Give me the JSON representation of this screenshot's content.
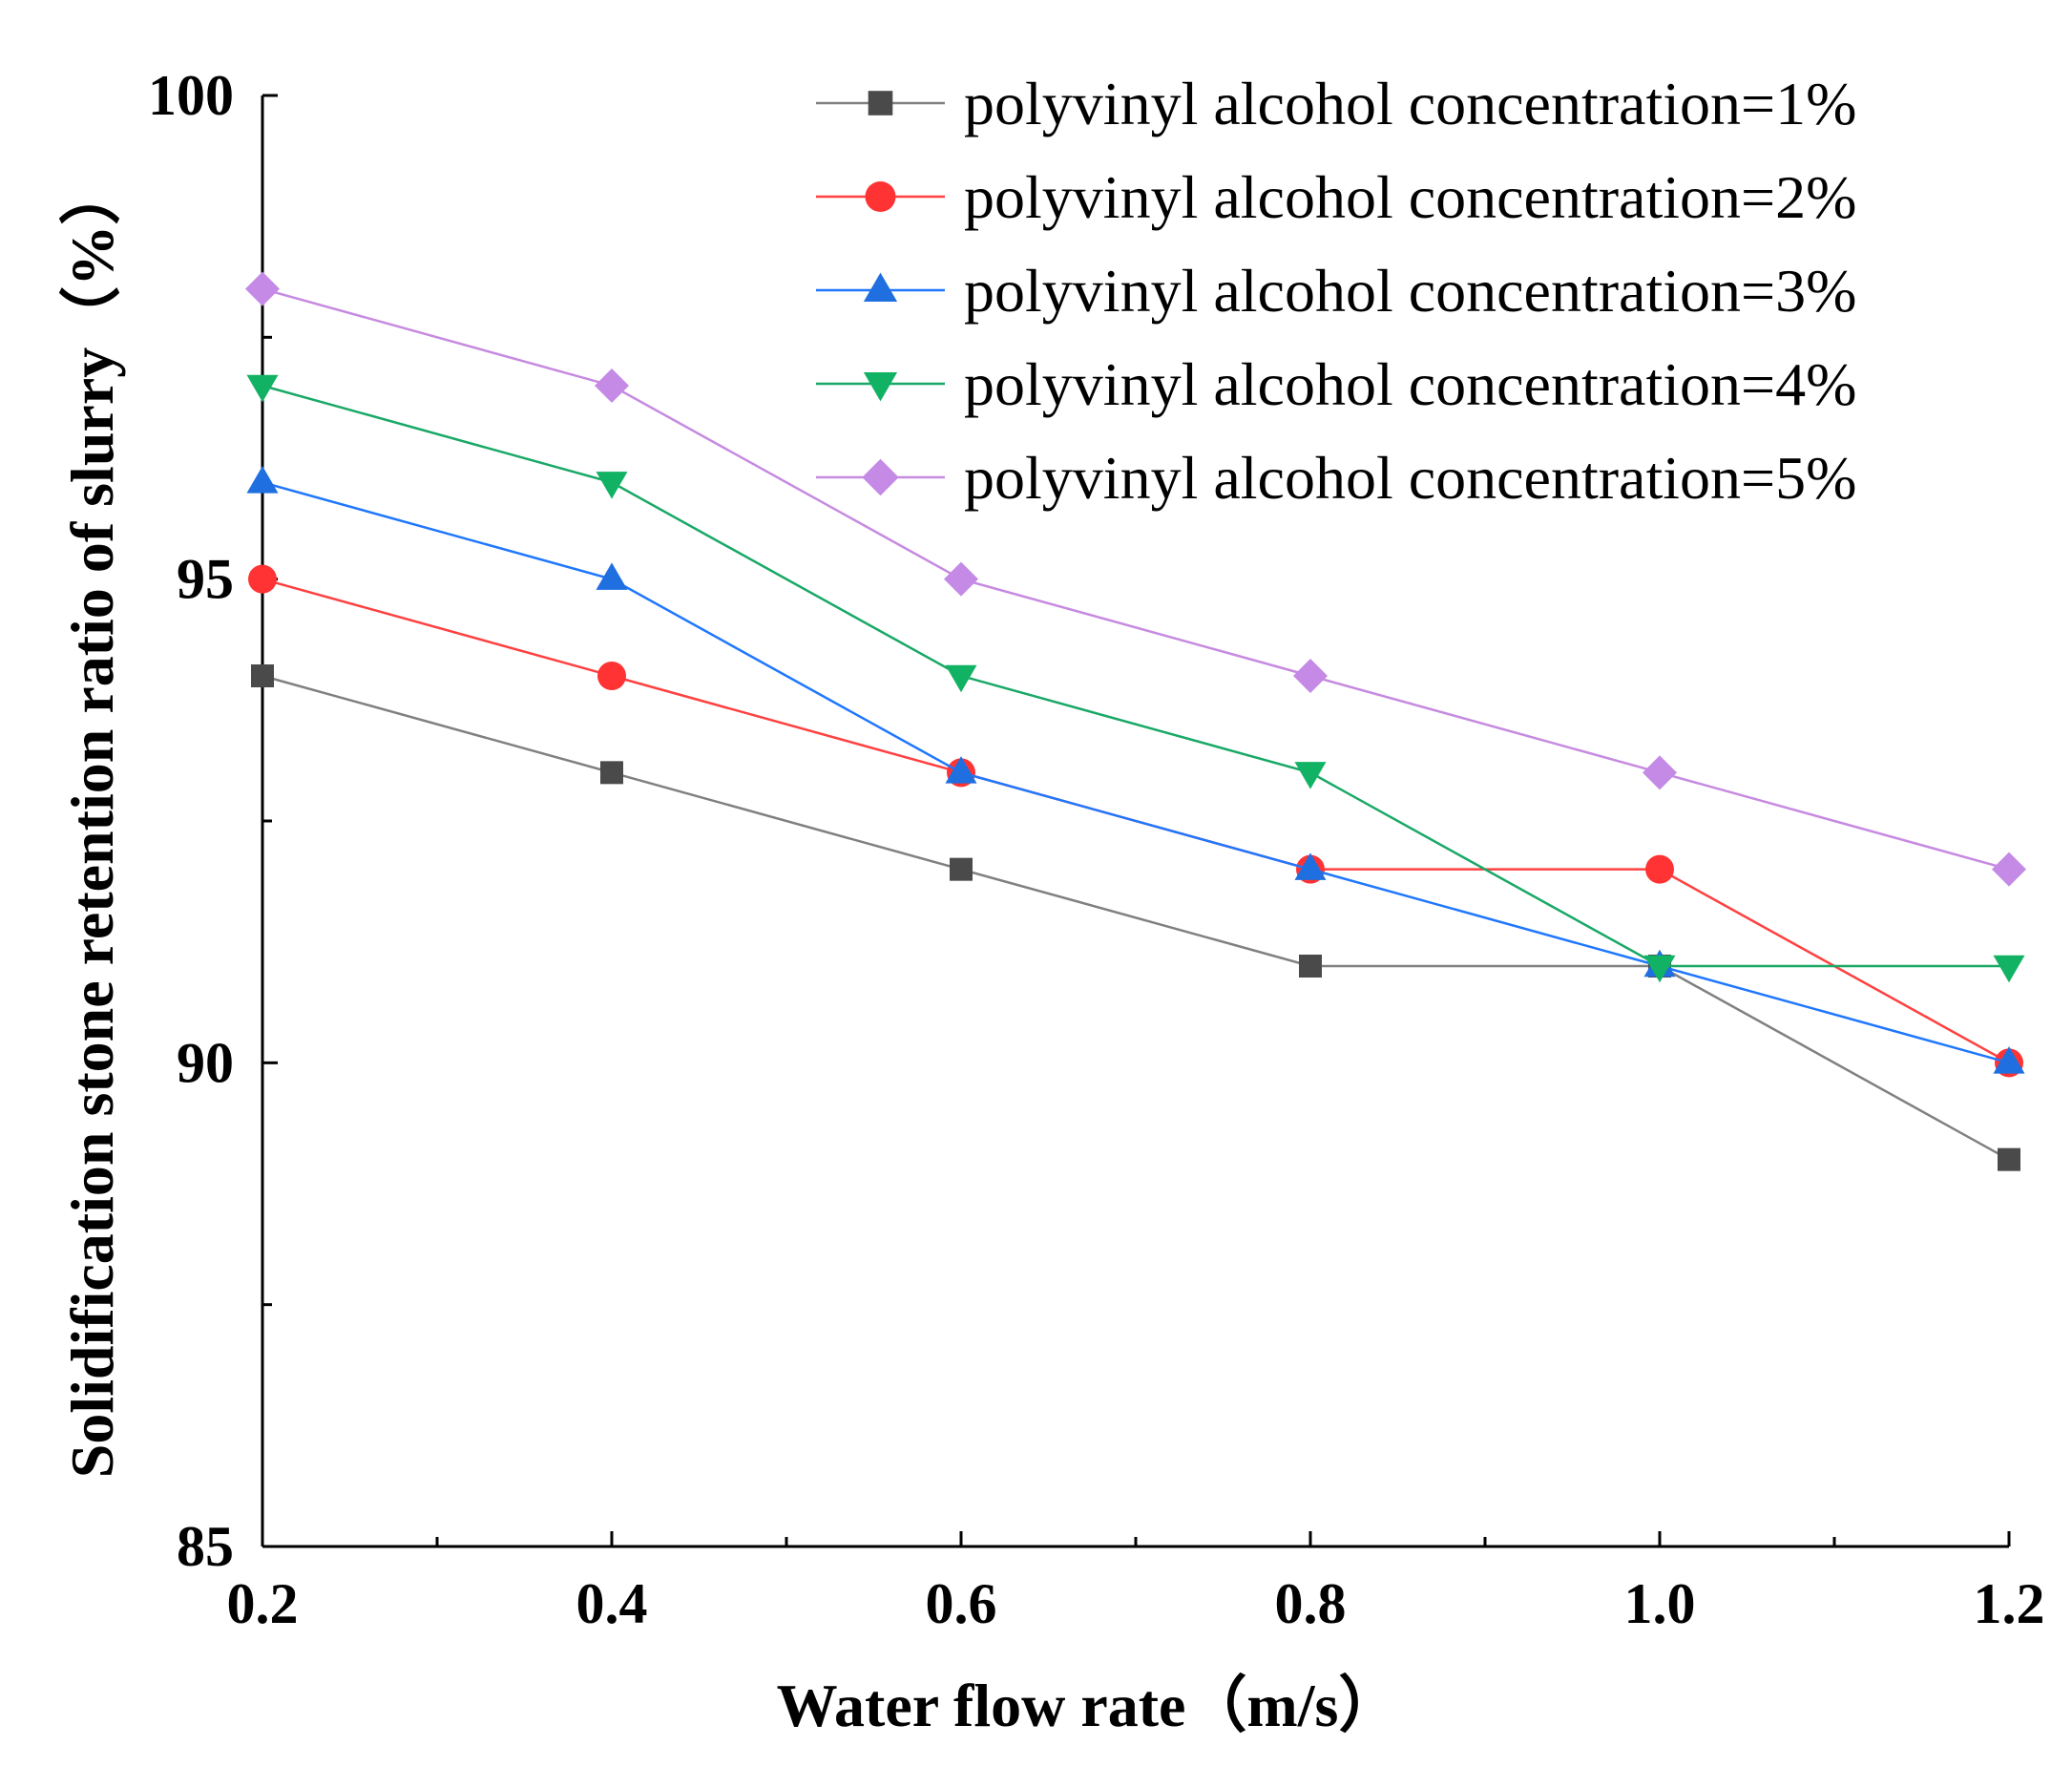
{
  "chart_data": {
    "type": "line",
    "xlabel": "Water flow rate（m/s）",
    "ylabel": "Solidification stone retention ratio of slurry（%）",
    "xlim": [
      0.2,
      1.2
    ],
    "ylim": [
      85,
      100
    ],
    "x_ticks": [
      "0.2",
      "0.4",
      "0.6",
      "0.8",
      "1.0",
      "1.2"
    ],
    "y_ticks": [
      "85",
      "90",
      "95",
      "100"
    ],
    "x": [
      0.2,
      0.4,
      0.6,
      0.8,
      1.0,
      1.2
    ],
    "legend_position": "top-right",
    "series": [
      {
        "name": "polyvinyl alcohol concentration=1%",
        "marker": "square",
        "line_color": "#808080",
        "marker_color": "#4a4a4a",
        "values": [
          94,
          93,
          92,
          91,
          91,
          89
        ]
      },
      {
        "name": "polyvinyl alcohol concentration=2%",
        "marker": "circle",
        "line_color": "#ff4040",
        "marker_color": "#ff3333",
        "values": [
          95,
          94,
          93,
          92,
          92,
          90
        ]
      },
      {
        "name": "polyvinyl alcohol concentration=3%",
        "marker": "triangle-up",
        "line_color": "#1f77ff",
        "marker_color": "#1f6fe0",
        "values": [
          96,
          95,
          93,
          92,
          91,
          90
        ]
      },
      {
        "name": "polyvinyl alcohol concentration=4%",
        "marker": "triangle-down",
        "line_color": "#19a866",
        "marker_color": "#12b264",
        "values": [
          97,
          96,
          94,
          93,
          91,
          91
        ]
      },
      {
        "name": "polyvinyl alcohol concentration=5%",
        "marker": "diamond",
        "line_color": "#c68ae0",
        "marker_color": "#c48ae6",
        "values": [
          98,
          97,
          95,
          94,
          93,
          92
        ]
      }
    ]
  }
}
